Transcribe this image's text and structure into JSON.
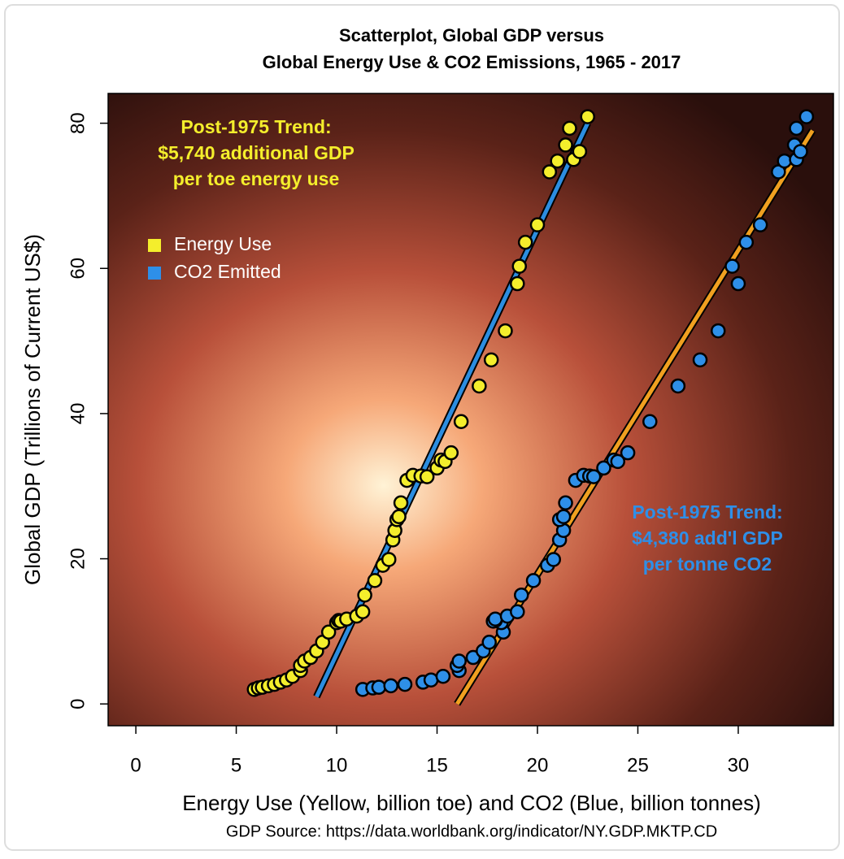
{
  "chart_data": {
    "type": "scatter",
    "title": [
      "Scatterplot, Global GDP versus",
      "Global Energy Use & CO2 Emissions, 1965 - 2017"
    ],
    "x_label": "Energy Use (Yellow, billion toe) and CO2 (Blue, billion tonnes)",
    "y_label": "Global GDP (Trillions of Current US$)",
    "source": "GDP Source: https://data.worldbank.org/indicator/NY.GDP.MKTP.CD",
    "xlim": [
      -1.38,
      34.74
    ],
    "ylim": [
      -3.0,
      84.1
    ],
    "xticks": [
      0,
      5,
      10,
      15,
      20,
      25,
      30
    ],
    "yticks": [
      0,
      20,
      40,
      60,
      80
    ],
    "legend_position": "upper-left",
    "series": [
      {
        "name": "Energy Use",
        "color": "#f4ee2c",
        "x": [
          5.9,
          6.1,
          6.3,
          6.6,
          6.9,
          7.2,
          7.5,
          7.8,
          8.2,
          8.2,
          8.4,
          8.7,
          9.0,
          9.3,
          9.6,
          10.0,
          10.1,
          10.2,
          10.5,
          11.0,
          11.3,
          11.4,
          11.9,
          12.3,
          12.6,
          12.8,
          12.9,
          13.0,
          13.1,
          13.2,
          13.5,
          13.8,
          14.2,
          14.5,
          15.0,
          15.2,
          15.4,
          15.7,
          16.2,
          17.1,
          17.7,
          18.4,
          19.0,
          19.4,
          19.1,
          20.0,
          20.6,
          21.0,
          21.4,
          21.6,
          21.8,
          22.1,
          22.5
        ],
        "values": [
          2.0,
          2.2,
          2.3,
          2.5,
          2.7,
          3.0,
          3.3,
          3.8,
          4.6,
          5.3,
          5.9,
          6.4,
          7.3,
          8.5,
          9.9,
          11.2,
          11.5,
          11.4,
          11.7,
          12.1,
          12.7,
          15.0,
          17.0,
          19.1,
          19.9,
          22.6,
          23.9,
          25.4,
          25.8,
          27.7,
          30.8,
          31.5,
          31.4,
          31.3,
          32.5,
          33.6,
          33.4,
          34.6,
          38.9,
          43.8,
          47.4,
          51.4,
          57.9,
          63.6,
          60.3,
          66.0,
          73.3,
          74.8,
          77.0,
          79.3,
          75.0,
          76.1,
          80.9
        ]
      },
      {
        "name": "CO2 Emitted",
        "color": "#2e8fe8",
        "x": [
          11.3,
          11.8,
          12.1,
          12.7,
          13.4,
          14.3,
          14.7,
          15.3,
          16.1,
          16.0,
          16.1,
          16.8,
          17.3,
          17.6,
          18.3,
          18.2,
          17.9,
          17.8,
          17.9,
          18.5,
          19.0,
          19.2,
          19.8,
          20.5,
          20.8,
          21.1,
          21.3,
          21.1,
          21.3,
          21.4,
          21.9,
          22.3,
          22.6,
          22.8,
          23.3,
          23.8,
          24.0,
          24.5,
          25.6,
          27.0,
          28.1,
          29.0,
          30.0,
          30.4,
          29.7,
          31.1,
          32.0,
          32.3,
          32.8,
          32.9,
          32.9,
          33.1,
          33.4
        ],
        "values": [
          2.0,
          2.2,
          2.3,
          2.5,
          2.7,
          3.0,
          3.3,
          3.8,
          4.6,
          5.3,
          5.9,
          6.4,
          7.3,
          8.5,
          9.9,
          11.2,
          11.5,
          11.4,
          11.7,
          12.1,
          12.7,
          15.0,
          17.0,
          19.1,
          19.9,
          22.6,
          23.9,
          25.4,
          25.8,
          27.7,
          30.8,
          31.5,
          31.4,
          31.3,
          32.5,
          33.6,
          33.4,
          34.6,
          38.9,
          43.8,
          47.4,
          51.4,
          57.9,
          63.6,
          60.3,
          66.0,
          73.3,
          74.8,
          77.0,
          79.3,
          75.0,
          76.1,
          80.9
        ]
      }
    ],
    "trend_lines": [
      {
        "color": "#2c8de0",
        "x": [
          9.0,
          22.5
        ],
        "y": [
          1.0,
          80.0
        ]
      },
      {
        "color": "#f0a020",
        "x": [
          16.0,
          33.7
        ],
        "y": [
          0.0,
          79.0
        ]
      }
    ],
    "annotations": [
      {
        "color": "#f4ee2c",
        "lines": [
          "Post-1975 Trend:",
          "$5,740 additional GDP",
          "per toe energy use"
        ]
      },
      {
        "color": "#2e8fe8",
        "lines": [
          "Post-1975 Trend:",
          "$4,380 add'l GDP",
          "per tonne CO2"
        ]
      }
    ]
  }
}
